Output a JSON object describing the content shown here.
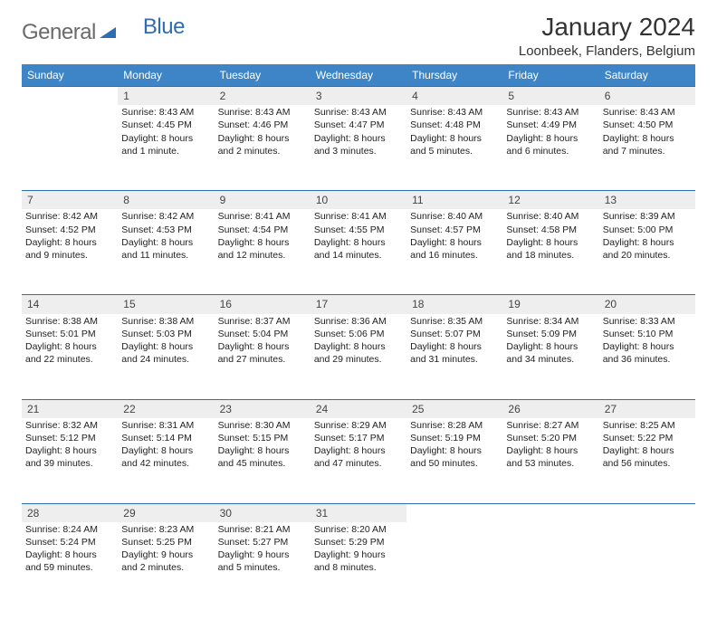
{
  "brand": {
    "part1": "General",
    "part2": "Blue",
    "color_gray": "#6b6b6b",
    "color_blue": "#2f6db3"
  },
  "title": "January 2024",
  "location": "Loonbeek, Flanders, Belgium",
  "header_bg": "#3d85c6",
  "header_fg": "#ffffff",
  "daynum_bg": "#eeeeee",
  "daynum_border": "#2f6db3",
  "day_headers": [
    "Sunday",
    "Monday",
    "Tuesday",
    "Wednesday",
    "Thursday",
    "Friday",
    "Saturday"
  ],
  "weeks": [
    {
      "nums": [
        "",
        "1",
        "2",
        "3",
        "4",
        "5",
        "6"
      ],
      "cells": [
        {
          "sunrise": "",
          "sunset": "",
          "daylight": ""
        },
        {
          "sunrise": "Sunrise: 8:43 AM",
          "sunset": "Sunset: 4:45 PM",
          "daylight": "Daylight: 8 hours and 1 minute."
        },
        {
          "sunrise": "Sunrise: 8:43 AM",
          "sunset": "Sunset: 4:46 PM",
          "daylight": "Daylight: 8 hours and 2 minutes."
        },
        {
          "sunrise": "Sunrise: 8:43 AM",
          "sunset": "Sunset: 4:47 PM",
          "daylight": "Daylight: 8 hours and 3 minutes."
        },
        {
          "sunrise": "Sunrise: 8:43 AM",
          "sunset": "Sunset: 4:48 PM",
          "daylight": "Daylight: 8 hours and 5 minutes."
        },
        {
          "sunrise": "Sunrise: 8:43 AM",
          "sunset": "Sunset: 4:49 PM",
          "daylight": "Daylight: 8 hours and 6 minutes."
        },
        {
          "sunrise": "Sunrise: 8:43 AM",
          "sunset": "Sunset: 4:50 PM",
          "daylight": "Daylight: 8 hours and 7 minutes."
        }
      ]
    },
    {
      "nums": [
        "7",
        "8",
        "9",
        "10",
        "11",
        "12",
        "13"
      ],
      "cells": [
        {
          "sunrise": "Sunrise: 8:42 AM",
          "sunset": "Sunset: 4:52 PM",
          "daylight": "Daylight: 8 hours and 9 minutes."
        },
        {
          "sunrise": "Sunrise: 8:42 AM",
          "sunset": "Sunset: 4:53 PM",
          "daylight": "Daylight: 8 hours and 11 minutes."
        },
        {
          "sunrise": "Sunrise: 8:41 AM",
          "sunset": "Sunset: 4:54 PM",
          "daylight": "Daylight: 8 hours and 12 minutes."
        },
        {
          "sunrise": "Sunrise: 8:41 AM",
          "sunset": "Sunset: 4:55 PM",
          "daylight": "Daylight: 8 hours and 14 minutes."
        },
        {
          "sunrise": "Sunrise: 8:40 AM",
          "sunset": "Sunset: 4:57 PM",
          "daylight": "Daylight: 8 hours and 16 minutes."
        },
        {
          "sunrise": "Sunrise: 8:40 AM",
          "sunset": "Sunset: 4:58 PM",
          "daylight": "Daylight: 8 hours and 18 minutes."
        },
        {
          "sunrise": "Sunrise: 8:39 AM",
          "sunset": "Sunset: 5:00 PM",
          "daylight": "Daylight: 8 hours and 20 minutes."
        }
      ]
    },
    {
      "nums": [
        "14",
        "15",
        "16",
        "17",
        "18",
        "19",
        "20"
      ],
      "cells": [
        {
          "sunrise": "Sunrise: 8:38 AM",
          "sunset": "Sunset: 5:01 PM",
          "daylight": "Daylight: 8 hours and 22 minutes."
        },
        {
          "sunrise": "Sunrise: 8:38 AM",
          "sunset": "Sunset: 5:03 PM",
          "daylight": "Daylight: 8 hours and 24 minutes."
        },
        {
          "sunrise": "Sunrise: 8:37 AM",
          "sunset": "Sunset: 5:04 PM",
          "daylight": "Daylight: 8 hours and 27 minutes."
        },
        {
          "sunrise": "Sunrise: 8:36 AM",
          "sunset": "Sunset: 5:06 PM",
          "daylight": "Daylight: 8 hours and 29 minutes."
        },
        {
          "sunrise": "Sunrise: 8:35 AM",
          "sunset": "Sunset: 5:07 PM",
          "daylight": "Daylight: 8 hours and 31 minutes."
        },
        {
          "sunrise": "Sunrise: 8:34 AM",
          "sunset": "Sunset: 5:09 PM",
          "daylight": "Daylight: 8 hours and 34 minutes."
        },
        {
          "sunrise": "Sunrise: 8:33 AM",
          "sunset": "Sunset: 5:10 PM",
          "daylight": "Daylight: 8 hours and 36 minutes."
        }
      ]
    },
    {
      "nums": [
        "21",
        "22",
        "23",
        "24",
        "25",
        "26",
        "27"
      ],
      "cells": [
        {
          "sunrise": "Sunrise: 8:32 AM",
          "sunset": "Sunset: 5:12 PM",
          "daylight": "Daylight: 8 hours and 39 minutes."
        },
        {
          "sunrise": "Sunrise: 8:31 AM",
          "sunset": "Sunset: 5:14 PM",
          "daylight": "Daylight: 8 hours and 42 minutes."
        },
        {
          "sunrise": "Sunrise: 8:30 AM",
          "sunset": "Sunset: 5:15 PM",
          "daylight": "Daylight: 8 hours and 45 minutes."
        },
        {
          "sunrise": "Sunrise: 8:29 AM",
          "sunset": "Sunset: 5:17 PM",
          "daylight": "Daylight: 8 hours and 47 minutes."
        },
        {
          "sunrise": "Sunrise: 8:28 AM",
          "sunset": "Sunset: 5:19 PM",
          "daylight": "Daylight: 8 hours and 50 minutes."
        },
        {
          "sunrise": "Sunrise: 8:27 AM",
          "sunset": "Sunset: 5:20 PM",
          "daylight": "Daylight: 8 hours and 53 minutes."
        },
        {
          "sunrise": "Sunrise: 8:25 AM",
          "sunset": "Sunset: 5:22 PM",
          "daylight": "Daylight: 8 hours and 56 minutes."
        }
      ]
    },
    {
      "nums": [
        "28",
        "29",
        "30",
        "31",
        "",
        "",
        ""
      ],
      "cells": [
        {
          "sunrise": "Sunrise: 8:24 AM",
          "sunset": "Sunset: 5:24 PM",
          "daylight": "Daylight: 8 hours and 59 minutes."
        },
        {
          "sunrise": "Sunrise: 8:23 AM",
          "sunset": "Sunset: 5:25 PM",
          "daylight": "Daylight: 9 hours and 2 minutes."
        },
        {
          "sunrise": "Sunrise: 8:21 AM",
          "sunset": "Sunset: 5:27 PM",
          "daylight": "Daylight: 9 hours and 5 minutes."
        },
        {
          "sunrise": "Sunrise: 8:20 AM",
          "sunset": "Sunset: 5:29 PM",
          "daylight": "Daylight: 9 hours and 8 minutes."
        },
        {
          "sunrise": "",
          "sunset": "",
          "daylight": ""
        },
        {
          "sunrise": "",
          "sunset": "",
          "daylight": ""
        },
        {
          "sunrise": "",
          "sunset": "",
          "daylight": ""
        }
      ]
    }
  ]
}
